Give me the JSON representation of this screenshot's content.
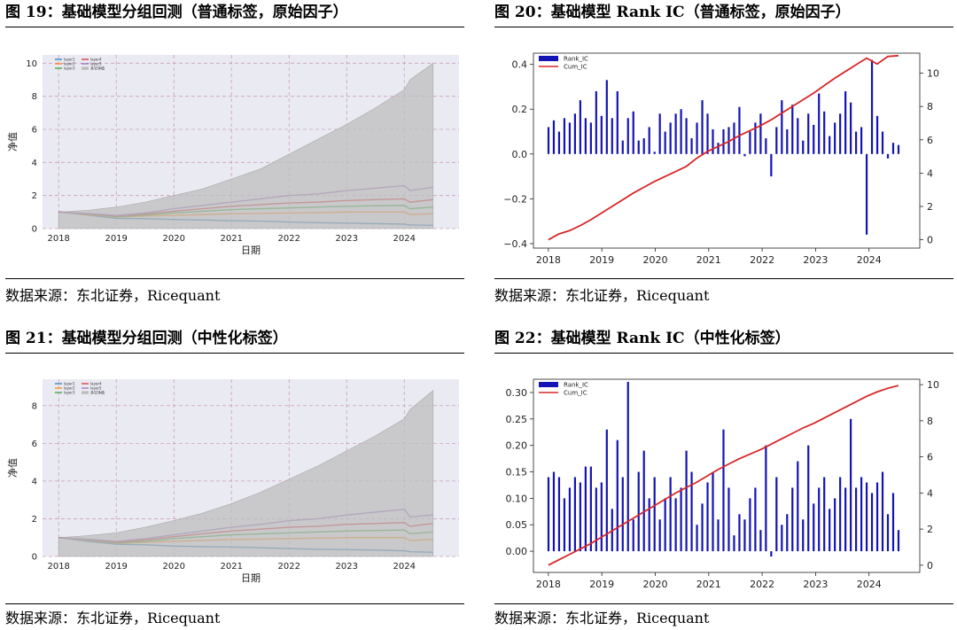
{
  "figures": [
    {
      "title": "图 19：基础模型分组回测（普通标签，原始因子）",
      "source": "数据来源：东北证券，Ricequant",
      "chart_data": {
        "type": "area",
        "xlabel": "日期",
        "ylabel": "净值",
        "xticks": [
          "2018",
          "2019",
          "2020",
          "2021",
          "2022",
          "2023",
          "2024"
        ],
        "yticks": [
          "0",
          "2",
          "4",
          "6",
          "8",
          "10"
        ],
        "ylim": [
          0,
          10.5
        ],
        "grid": true,
        "legend": "top-left",
        "x": [
          2018.0,
          2018.5,
          2019.0,
          2019.5,
          2020.0,
          2020.5,
          2021.0,
          2021.5,
          2022.0,
          2022.5,
          2023.0,
          2023.5,
          2024.0,
          2024.1,
          2024.5
        ],
        "series": [
          {
            "name": "layer1",
            "color": "#1f77b4",
            "values": [
              1.0,
              0.82,
              0.62,
              0.6,
              0.55,
              0.52,
              0.48,
              0.45,
              0.4,
              0.36,
              0.33,
              0.3,
              0.27,
              0.22,
              0.2
            ]
          },
          {
            "name": "layer2",
            "color": "#ff7f0e",
            "values": [
              1.0,
              0.85,
              0.7,
              0.76,
              0.8,
              0.85,
              0.9,
              0.92,
              0.95,
              0.97,
              1.0,
              1.0,
              1.0,
              0.85,
              0.9
            ]
          },
          {
            "name": "layer3",
            "color": "#2ca02c",
            "values": [
              1.0,
              0.88,
              0.72,
              0.82,
              0.95,
              1.05,
              1.15,
              1.2,
              1.25,
              1.3,
              1.35,
              1.38,
              1.4,
              1.2,
              1.3
            ]
          },
          {
            "name": "layer4",
            "color": "#d62728",
            "values": [
              1.0,
              0.9,
              0.76,
              0.88,
              1.05,
              1.2,
              1.35,
              1.45,
              1.55,
              1.6,
              1.7,
              1.75,
              1.8,
              1.6,
              1.75
            ]
          },
          {
            "name": "layer5",
            "color": "#9467bd",
            "values": [
              1.0,
              0.92,
              0.8,
              0.95,
              1.2,
              1.4,
              1.6,
              1.8,
              2.0,
              2.1,
              2.3,
              2.45,
              2.6,
              2.3,
              2.5
            ]
          },
          {
            "name": "多空净值",
            "color": "#bdbdbd",
            "fill": true,
            "values": [
              1.0,
              1.1,
              1.3,
              1.6,
              2.0,
              2.4,
              3.0,
              3.6,
              4.5,
              5.4,
              6.3,
              7.3,
              8.4,
              9.0,
              10.0
            ]
          }
        ]
      }
    },
    {
      "title": "图 20：基础模型 Rank IC（普通标签，原始因子）",
      "source": "数据来源：东北证券，Ricequant",
      "chart_data": {
        "type": "bar",
        "xticks": [
          "2018",
          "2019",
          "2020",
          "2021",
          "2022",
          "2023",
          "2024"
        ],
        "yticks_left": [
          "−0.4",
          "−0.2",
          "0.0",
          "0.2",
          "0.4"
        ],
        "yticks_right": [
          "0",
          "2",
          "4",
          "6",
          "8",
          "10"
        ],
        "ylim": [
          -0.42,
          0.45
        ],
        "ylim_right": [
          -0.5,
          11.2
        ],
        "legend": "top-left",
        "x_start": 2018.0,
        "x_end": 2024.55,
        "series": [
          {
            "name": "Rank_IC",
            "color": "#1414b4",
            "values": [
              0.12,
              0.15,
              0.1,
              0.16,
              0.14,
              0.18,
              0.24,
              0.16,
              0.14,
              0.28,
              0.17,
              0.33,
              0.16,
              0.28,
              0.06,
              0.16,
              0.19,
              0.06,
              0.07,
              0.12,
              0.01,
              0.18,
              0.1,
              0.14,
              0.18,
              0.2,
              0.16,
              0.07,
              0.14,
              0.24,
              0.18,
              0.11,
              0.05,
              0.11,
              0.12,
              0.14,
              0.21,
              -0.01,
              0.1,
              0.14,
              0.18,
              0.07,
              -0.1,
              0.12,
              0.24,
              0.11,
              0.22,
              0.16,
              0.06,
              0.18,
              0.13,
              0.27,
              0.19,
              0.08,
              0.14,
              0.18,
              0.28,
              0.23,
              0.1,
              0.12,
              -0.36,
              0.42,
              0.17,
              0.1,
              -0.02,
              0.05,
              0.04
            ]
          },
          {
            "name": "Cum_IC",
            "color": "#d62728",
            "values": [
              0.0,
              0.35,
              0.55,
              0.85,
              1.2,
              1.6,
              2.0,
              2.4,
              2.8,
              3.15,
              3.5,
              3.8,
              4.1,
              4.4,
              4.9,
              5.3,
              5.6,
              5.9,
              6.25,
              6.55,
              6.85,
              7.2,
              7.6,
              8.0,
              8.4,
              8.8,
              9.25,
              9.7,
              10.1,
              10.5,
              10.9,
              10.55,
              11.0,
              11.05
            ]
          }
        ]
      }
    },
    {
      "title": "图 21：基础模型分组回测（中性化标签）",
      "source": "数据来源：东北证券，Ricequant",
      "chart_data": {
        "type": "area",
        "xlabel": "日期",
        "ylabel": "净值",
        "xticks": [
          "2018",
          "2019",
          "2020",
          "2021",
          "2022",
          "2023",
          "2024"
        ],
        "yticks": [
          "0",
          "2",
          "4",
          "6",
          "8"
        ],
        "ylim": [
          0,
          9.4
        ],
        "grid": true,
        "legend": "top-left",
        "x": [
          2018.0,
          2018.5,
          2019.0,
          2019.5,
          2020.0,
          2020.5,
          2021.0,
          2021.5,
          2022.0,
          2022.5,
          2023.0,
          2023.5,
          2024.0,
          2024.1,
          2024.5
        ],
        "series": [
          {
            "name": "layer1",
            "color": "#1f77b4",
            "values": [
              1.0,
              0.8,
              0.65,
              0.62,
              0.55,
              0.52,
              0.5,
              0.46,
              0.42,
              0.38,
              0.36,
              0.34,
              0.3,
              0.25,
              0.22
            ]
          },
          {
            "name": "layer2",
            "color": "#ff7f0e",
            "values": [
              1.0,
              0.85,
              0.7,
              0.75,
              0.8,
              0.85,
              0.9,
              0.92,
              0.95,
              0.97,
              1.0,
              1.0,
              1.0,
              0.85,
              0.9
            ]
          },
          {
            "name": "layer3",
            "color": "#2ca02c",
            "values": [
              1.0,
              0.87,
              0.72,
              0.8,
              0.95,
              1.05,
              1.15,
              1.2,
              1.25,
              1.3,
              1.35,
              1.38,
              1.4,
              1.2,
              1.3
            ]
          },
          {
            "name": "layer4",
            "color": "#d62728",
            "values": [
              1.0,
              0.9,
              0.76,
              0.88,
              1.05,
              1.2,
              1.35,
              1.45,
              1.55,
              1.6,
              1.7,
              1.75,
              1.8,
              1.6,
              1.75
            ]
          },
          {
            "name": "layer5",
            "color": "#9467bd",
            "values": [
              1.0,
              0.92,
              0.8,
              0.95,
              1.15,
              1.35,
              1.55,
              1.7,
              1.9,
              2.0,
              2.2,
              2.35,
              2.5,
              2.1,
              2.2
            ]
          },
          {
            "name": "多空净值",
            "color": "#bdbdbd",
            "fill": true,
            "values": [
              1.0,
              1.1,
              1.25,
              1.55,
              1.9,
              2.3,
              2.8,
              3.4,
              4.1,
              4.8,
              5.6,
              6.4,
              7.3,
              7.8,
              8.8
            ]
          }
        ]
      }
    },
    {
      "title": "图 22：基础模型 Rank IC（中性化标签）",
      "source": "数据来源：东北证券，Ricequant",
      "chart_data": {
        "type": "bar",
        "xticks": [
          "2018",
          "2019",
          "2020",
          "2021",
          "2022",
          "2023",
          "2024"
        ],
        "yticks_left": [
          "0.00",
          "0.05",
          "0.10",
          "0.15",
          "0.20",
          "0.25",
          "0.30"
        ],
        "yticks_right": [
          "0",
          "2",
          "4",
          "6",
          "8",
          "10"
        ],
        "ylim": [
          -0.04,
          0.325
        ],
        "ylim_right": [
          -0.4,
          10.3
        ],
        "legend": "top-left",
        "x_start": 2018.0,
        "x_end": 2024.55,
        "series": [
          {
            "name": "Rank_IC",
            "color": "#1414b4",
            "values": [
              0.14,
              0.15,
              0.14,
              0.1,
              0.12,
              0.14,
              0.13,
              0.16,
              0.16,
              0.12,
              0.13,
              0.23,
              0.08,
              0.21,
              0.14,
              0.32,
              0.06,
              0.15,
              0.19,
              0.1,
              0.14,
              0.06,
              0.1,
              0.14,
              0.1,
              0.12,
              0.19,
              0.15,
              0.05,
              0.09,
              0.13,
              0.15,
              0.06,
              0.23,
              0.12,
              0.03,
              0.07,
              0.06,
              0.1,
              0.12,
              0.04,
              0.2,
              -0.01,
              0.14,
              0.05,
              0.07,
              0.12,
              0.17,
              0.06,
              0.2,
              0.09,
              0.12,
              0.14,
              0.08,
              0.1,
              0.14,
              0.12,
              0.25,
              0.12,
              0.14,
              0.13,
              0.11,
              0.13,
              0.15,
              0.07,
              0.11,
              0.04
            ]
          },
          {
            "name": "Cum_IC",
            "color": "#d62728",
            "values": [
              0.0,
              0.3,
              0.6,
              0.9,
              1.2,
              1.55,
              1.9,
              2.25,
              2.6,
              2.95,
              3.3,
              3.65,
              4.0,
              4.3,
              4.6,
              4.95,
              5.3,
              5.6,
              5.9,
              6.15,
              6.4,
              6.7,
              7.0,
              7.3,
              7.6,
              7.85,
              8.15,
              8.45,
              8.75,
              9.05,
              9.35,
              9.6,
              9.8,
              9.95
            ]
          }
        ]
      }
    }
  ]
}
